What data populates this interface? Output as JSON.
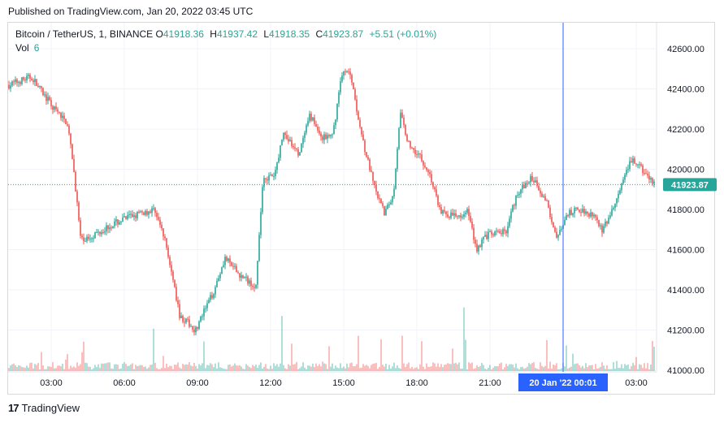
{
  "published": "Published on TradingView.com, Jan 20, 2022 03:45 UTC",
  "legend": {
    "symbol": "Bitcoin / TetherUS, 1, BINANCE",
    "o_label": "O",
    "o": "41918.36",
    "h_label": "H",
    "h": "41937.42",
    "l_label": "L",
    "l": "41918.35",
    "c_label": "C",
    "c": "41923.87",
    "change": "+5.51 (+0.01%)"
  },
  "volume": {
    "label": "Vol",
    "value": "6"
  },
  "footer": {
    "brand": "TradingView",
    "logo_text": "17"
  },
  "colors": {
    "up": "#26a69a",
    "down": "#ef5350",
    "crosshair": "#2962ff",
    "price_label_bg": "#26a69a",
    "time_label_bg": "#2962ff"
  },
  "chart_data": {
    "type": "candlestick",
    "price_axis_ticks": [
      "42600.00",
      "42400.00",
      "42200.00",
      "42000.00",
      "41800.00",
      "41600.00",
      "41400.00",
      "41200.00",
      "41000.00"
    ],
    "time_axis_ticks": [
      "03:00",
      "06:00",
      "09:00",
      "12:00",
      "15:00",
      "18:00",
      "21:00",
      "03:00"
    ],
    "ylim": [
      41000,
      42600
    ],
    "last_price_label": "41923.87",
    "crosshair_time_label": "20 Jan '22   00:01",
    "price_path": [
      {
        "t": 0.0,
        "p": 42420
      },
      {
        "t": 1.0,
        "p": 42460
      },
      {
        "t": 2.0,
        "p": 42300
      },
      {
        "t": 2.6,
        "p": 42230
      },
      {
        "t": 2.9,
        "p": 41980
      },
      {
        "t": 3.2,
        "p": 41640
      },
      {
        "t": 4.5,
        "p": 41720
      },
      {
        "t": 5.5,
        "p": 41770
      },
      {
        "t": 6.5,
        "p": 41800
      },
      {
        "t": 7.0,
        "p": 41620
      },
      {
        "t": 7.6,
        "p": 41270
      },
      {
        "t": 8.3,
        "p": 41200
      },
      {
        "t": 9.1,
        "p": 41390
      },
      {
        "t": 9.6,
        "p": 41560
      },
      {
        "t": 10.3,
        "p": 41470
      },
      {
        "t": 11.0,
        "p": 41420
      },
      {
        "t": 11.3,
        "p": 41960
      },
      {
        "t": 11.8,
        "p": 41960
      },
      {
        "t": 12.2,
        "p": 42180
      },
      {
        "t": 12.9,
        "p": 42070
      },
      {
        "t": 13.4,
        "p": 42270
      },
      {
        "t": 13.9,
        "p": 42160
      },
      {
        "t": 14.4,
        "p": 42160
      },
      {
        "t": 14.8,
        "p": 42480
      },
      {
        "t": 15.2,
        "p": 42480
      },
      {
        "t": 15.6,
        "p": 42220
      },
      {
        "t": 15.9,
        "p": 42070
      },
      {
        "t": 16.3,
        "p": 41890
      },
      {
        "t": 16.7,
        "p": 41780
      },
      {
        "t": 17.1,
        "p": 41870
      },
      {
        "t": 17.4,
        "p": 42280
      },
      {
        "t": 17.8,
        "p": 42120
      },
      {
        "t": 18.2,
        "p": 42080
      },
      {
        "t": 18.7,
        "p": 41980
      },
      {
        "t": 19.2,
        "p": 41790
      },
      {
        "t": 19.9,
        "p": 41760
      },
      {
        "t": 20.4,
        "p": 41800
      },
      {
        "t": 20.8,
        "p": 41600
      },
      {
        "t": 21.2,
        "p": 41670
      },
      {
        "t": 22.1,
        "p": 41690
      },
      {
        "t": 22.6,
        "p": 41880
      },
      {
        "t": 23.3,
        "p": 41960
      },
      {
        "t": 23.9,
        "p": 41840
      },
      {
        "t": 24.4,
        "p": 41660
      },
      {
        "t": 24.9,
        "p": 41780
      },
      {
        "t": 25.4,
        "p": 41800
      },
      {
        "t": 26.1,
        "p": 41770
      },
      {
        "t": 26.4,
        "p": 41690
      },
      {
        "t": 26.9,
        "p": 41810
      },
      {
        "t": 27.3,
        "p": 41930
      },
      {
        "t": 27.7,
        "p": 42050
      },
      {
        "t": 28.3,
        "p": 41980
      },
      {
        "t": 28.7,
        "p": 41924
      }
    ]
  }
}
